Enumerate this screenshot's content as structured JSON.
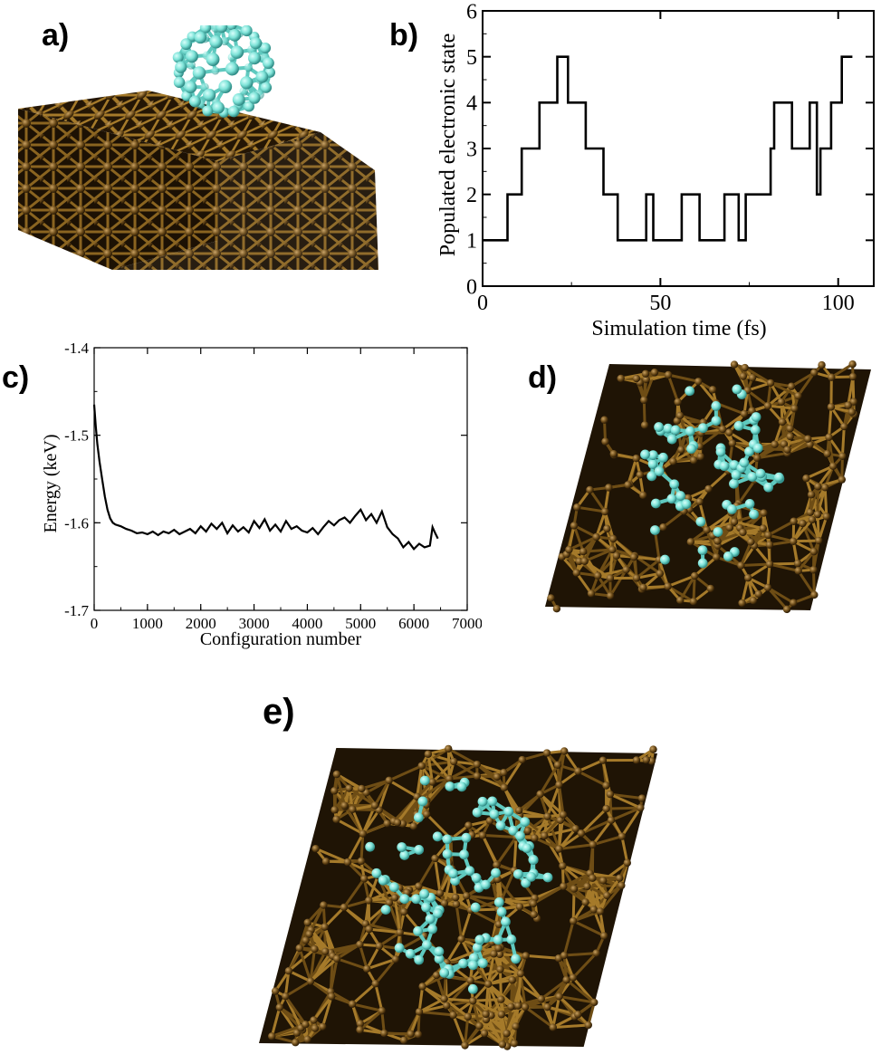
{
  "panels": {
    "a": {
      "label": "a)"
    },
    "b": {
      "label": "b)"
    },
    "c": {
      "label": "c)"
    },
    "d": {
      "label": "d)"
    },
    "e": {
      "label": "e)"
    }
  },
  "colors": {
    "substrate": "#5a3f12",
    "bond": "#a57a2a",
    "adsorbate": "#7ee3d8",
    "adsorbate_dark": "#3aa8a0",
    "line": "#000000"
  },
  "chart_data": [
    {
      "id": "b",
      "type": "line",
      "step": true,
      "xlabel": "Simulation time (fs)",
      "ylabel": "Populated electronic state",
      "xlim": [
        0,
        110
      ],
      "ylim": [
        0,
        6
      ],
      "xticks": [
        0,
        50,
        100
      ],
      "yticks": [
        0,
        1,
        2,
        3,
        4,
        5,
        6
      ],
      "x": [
        0,
        7,
        7,
        11,
        11,
        16,
        16,
        21,
        21,
        24,
        24,
        29,
        29,
        34,
        34,
        38,
        38,
        46,
        46,
        48,
        48,
        56,
        56,
        61,
        61,
        68,
        68,
        72,
        72,
        74,
        74,
        77,
        77,
        81,
        81,
        82,
        82,
        87,
        87,
        92,
        92,
        94,
        94,
        95,
        95,
        97,
        97,
        98,
        98,
        101,
        101,
        104
      ],
      "y": [
        1,
        1,
        2,
        2,
        3,
        3,
        4,
        4,
        5,
        5,
        4,
        4,
        3,
        3,
        2,
        2,
        1,
        1,
        2,
        2,
        1,
        1,
        2,
        2,
        1,
        1,
        2,
        2,
        1,
        1,
        2,
        2,
        2,
        2,
        3,
        3,
        4,
        4,
        3,
        3,
        4,
        4,
        2,
        2,
        3,
        3,
        3,
        3,
        4,
        4,
        5,
        5
      ]
    },
    {
      "id": "c",
      "type": "line",
      "xlabel": "Configuration number",
      "ylabel": "Energy (keV)",
      "xlim": [
        0,
        7000
      ],
      "ylim": [
        -1.7,
        -1.4
      ],
      "xticks": [
        0,
        1000,
        2000,
        3000,
        4000,
        5000,
        6000,
        7000
      ],
      "yticks": [
        -1.7,
        -1.6,
        -1.5,
        -1.4
      ],
      "ytick_labels": [
        "-1.7",
        "-1.6",
        "-1.5",
        "-1.4"
      ],
      "x": [
        0,
        30,
        60,
        100,
        150,
        200,
        250,
        300,
        350,
        400,
        500,
        600,
        700,
        800,
        900,
        1000,
        1100,
        1200,
        1300,
        1400,
        1500,
        1600,
        1700,
        1800,
        1900,
        2000,
        2100,
        2200,
        2300,
        2400,
        2500,
        2600,
        2700,
        2800,
        2900,
        3000,
        3100,
        3200,
        3300,
        3400,
        3500,
        3600,
        3700,
        3800,
        3900,
        4000,
        4100,
        4200,
        4300,
        4400,
        4500,
        4600,
        4700,
        4800,
        4900,
        5000,
        5100,
        5200,
        5300,
        5400,
        5500,
        5600,
        5700,
        5800,
        5900,
        6000,
        6100,
        6200,
        6300,
        6350,
        6400,
        6450
      ],
      "y": [
        -1.465,
        -1.49,
        -1.51,
        -1.53,
        -1.55,
        -1.57,
        -1.585,
        -1.595,
        -1.6,
        -1.602,
        -1.604,
        -1.607,
        -1.609,
        -1.612,
        -1.611,
        -1.613,
        -1.61,
        -1.614,
        -1.61,
        -1.612,
        -1.608,
        -1.613,
        -1.61,
        -1.607,
        -1.612,
        -1.604,
        -1.61,
        -1.601,
        -1.607,
        -1.6,
        -1.612,
        -1.603,
        -1.61,
        -1.605,
        -1.611,
        -1.598,
        -1.606,
        -1.596,
        -1.609,
        -1.602,
        -1.61,
        -1.598,
        -1.607,
        -1.604,
        -1.609,
        -1.611,
        -1.606,
        -1.613,
        -1.605,
        -1.598,
        -1.603,
        -1.597,
        -1.594,
        -1.6,
        -1.592,
        -1.585,
        -1.597,
        -1.59,
        -1.6,
        -1.587,
        -1.605,
        -1.613,
        -1.618,
        -1.628,
        -1.622,
        -1.63,
        -1.624,
        -1.628,
        -1.626,
        -1.605,
        -1.612,
        -1.618
      ]
    }
  ]
}
